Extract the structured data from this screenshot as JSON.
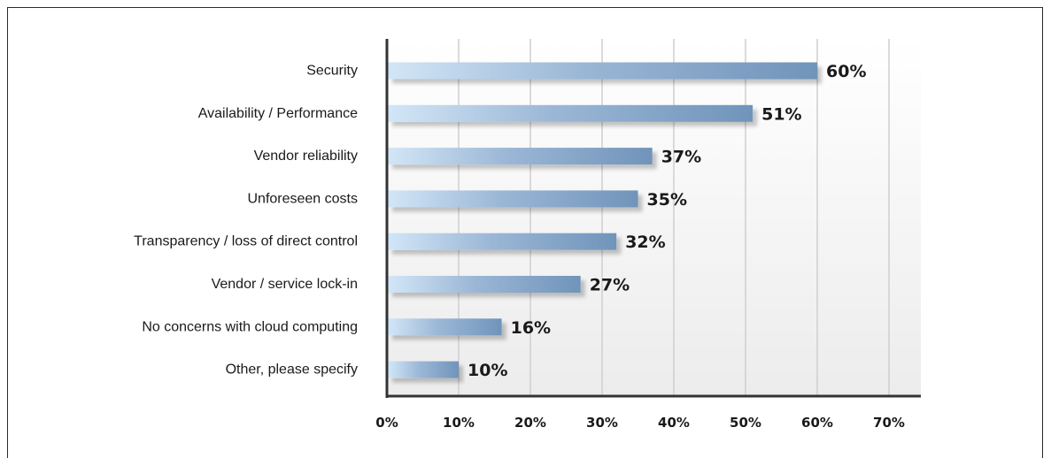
{
  "chart_data": {
    "type": "bar",
    "orientation": "horizontal",
    "categories": [
      "Security",
      "Availability / Performance",
      "Vendor reliability",
      "Unforeseen costs",
      "Transparency / loss of direct control",
      "Vendor / service lock-in",
      "No concerns with cloud computing",
      "Other, please specify"
    ],
    "values": [
      60,
      51,
      37,
      35,
      32,
      27,
      16,
      10
    ],
    "value_labels": [
      "60%",
      "51%",
      "37%",
      "35%",
      "32%",
      "27%",
      "16%",
      "10%"
    ],
    "xlim": [
      0,
      70
    ],
    "x_ticks": [
      "0%",
      "10%",
      "20%",
      "30%",
      "40%",
      "50%",
      "60%",
      "70%"
    ],
    "grid": true,
    "legend": "none",
    "colors": {
      "bar_start": "#d2e6f7",
      "bar_end": "#7094ba",
      "grid": "#cfcfcf",
      "axis": "#333333"
    }
  }
}
